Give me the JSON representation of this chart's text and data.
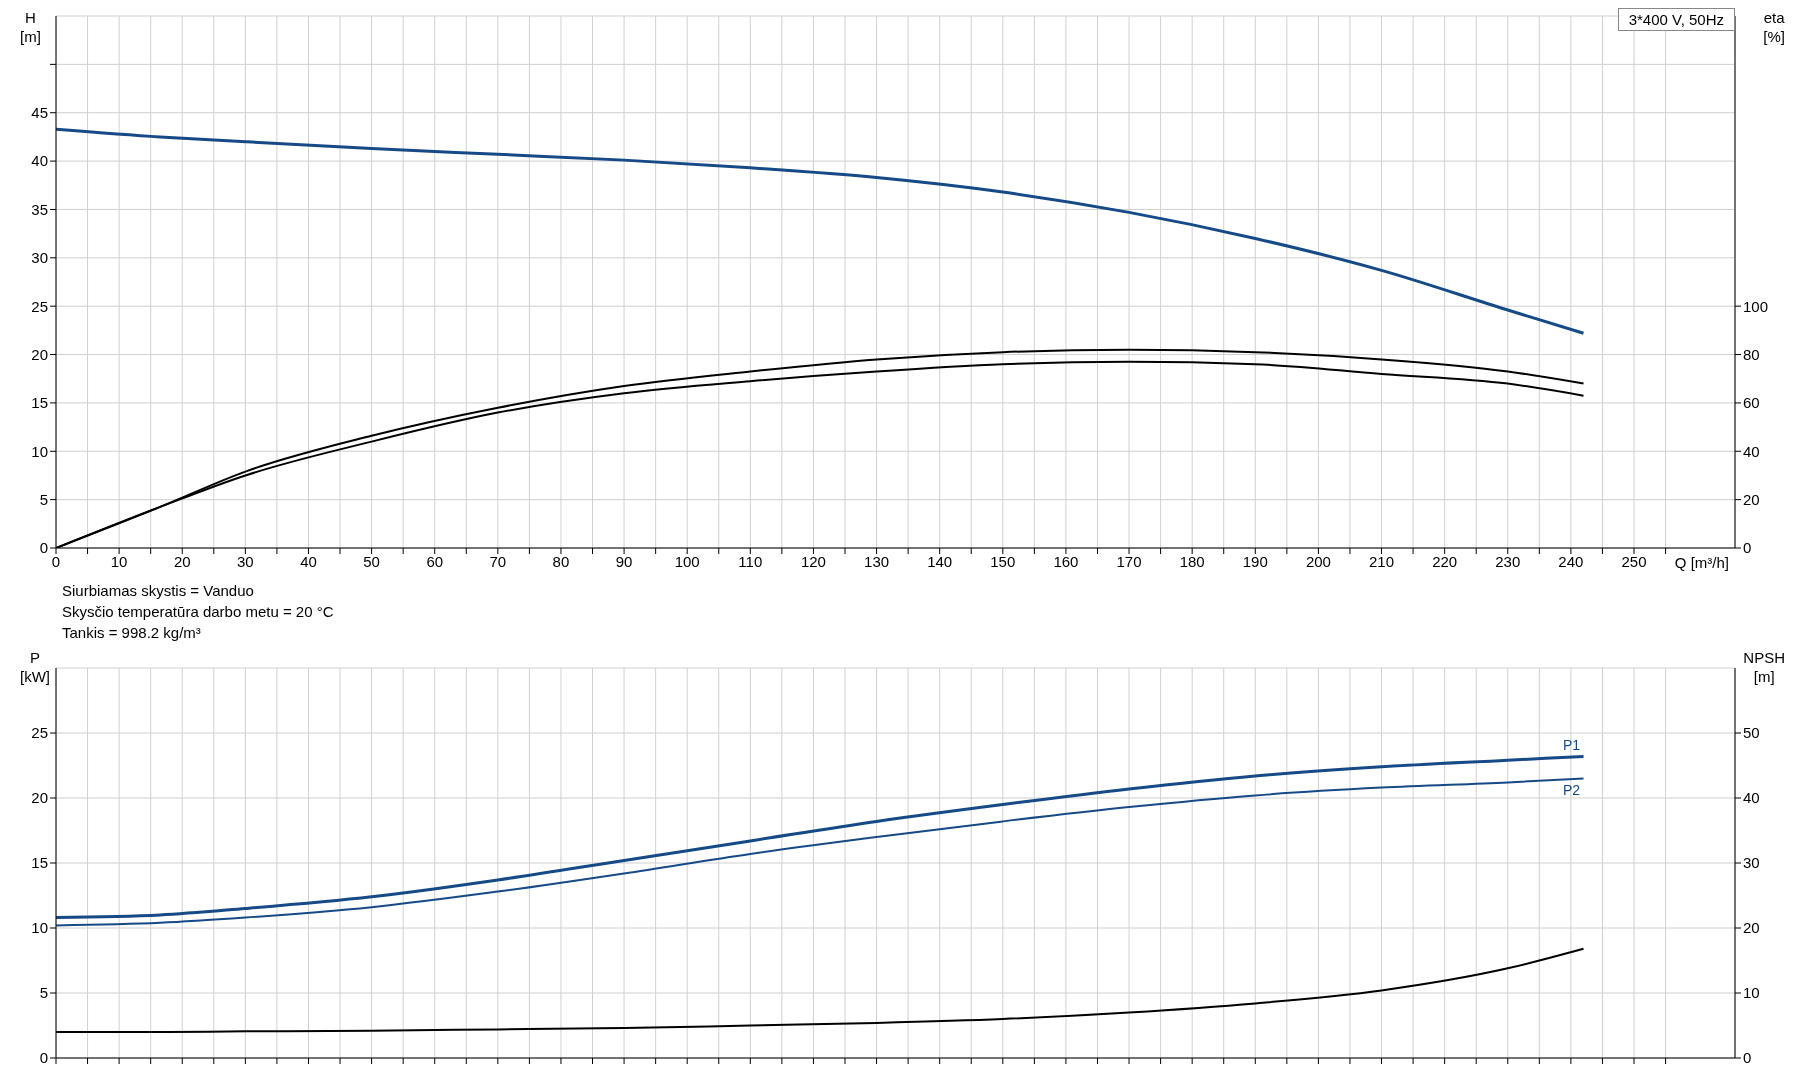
{
  "chart_data": [
    {
      "type": "line",
      "xlabel": "Q [m³/h]",
      "ylabel": "H [m]",
      "y2label": "eta [%]",
      "annotations": [
        "3*400 V, 50Hz",
        "Siurbiamas skystis = Vanduo",
        "Skysčio temperatūra darbo metu = 20 °C",
        "Tankis = 998.2 kg/m³"
      ],
      "x": [
        0,
        16.5,
        30,
        50,
        70,
        90,
        110,
        130,
        150,
        170,
        190,
        210,
        230,
        242
      ],
      "series": [
        {
          "color": "#154a86",
          "values": [
            43.3,
            42.5,
            42.0,
            41.3,
            40.7,
            40.1,
            39.3,
            38.3,
            36.8,
            34.7,
            32.0,
            28.7,
            24.6,
            22.2
          ]
        },
        {
          "color": "#000000",
          "axis": "y2",
          "values": [
            0,
            17,
            31.6,
            46.4,
            58,
            67,
            73,
            78,
            81,
            82,
            81,
            78,
            73,
            68
          ]
        },
        {
          "color": "#000000",
          "axis": "y2",
          "values": [
            0,
            17,
            30,
            44,
            56,
            64,
            69,
            73,
            76,
            77,
            76,
            72,
            68,
            63
          ]
        }
      ],
      "xlim": [
        0,
        266
      ],
      "xticks": [
        0,
        {
          "value": 5,
          "label": null
        },
        10,
        {
          "value": 15,
          "label": null
        },
        20,
        {
          "value": 25,
          "label": null
        },
        30,
        {
          "value": 35,
          "label": null
        },
        40,
        {
          "value": 45,
          "label": null
        },
        50,
        {
          "value": 55,
          "label": null
        },
        60,
        {
          "value": 65,
          "label": null
        },
        70,
        {
          "value": 75,
          "label": null
        },
        80,
        {
          "value": 85,
          "label": null
        },
        90,
        {
          "value": 95,
          "label": null
        },
        100,
        {
          "value": 105,
          "label": null
        },
        110,
        {
          "value": 115,
          "label": null
        },
        120,
        {
          "value": 125,
          "label": null
        },
        130,
        {
          "value": 135,
          "label": null
        },
        140,
        {
          "value": 145,
          "label": null
        },
        150,
        {
          "value": 155,
          "label": null
        },
        160,
        {
          "value": 165,
          "label": null
        },
        170,
        {
          "value": 175,
          "label": null
        },
        180,
        {
          "value": 185,
          "label": null
        },
        190,
        {
          "value": 195,
          "label": null
        },
        200,
        {
          "value": 205,
          "label": null
        },
        210,
        {
          "value": 215,
          "label": null
        },
        220,
        {
          "value": 225,
          "label": null
        },
        230,
        {
          "value": 235,
          "label": null
        },
        240,
        {
          "value": 245,
          "label": null
        },
        250,
        {
          "value": 255,
          "label": null
        }
      ],
      "ylim": [
        0,
        55
      ],
      "yticks": [
        0,
        5,
        10,
        15,
        20,
        25,
        30,
        35,
        40,
        45,
        {
          "value": 50,
          "label": null
        }
      ],
      "y2lim": [
        0,
        220
      ],
      "y2ticks": [
        0,
        20,
        40,
        60,
        80,
        100
      ],
      "grid": true
    },
    {
      "type": "line",
      "ylabel": "P [kW]",
      "y2label": "NPSH [m]",
      "tick_labels": "y",
      "x": [
        0,
        16.5,
        30,
        50,
        70,
        90,
        110,
        130,
        150,
        170,
        190,
        210,
        230,
        242
      ],
      "series": [
        {
          "name": "P1",
          "color": "#154a86",
          "values": [
            10.8,
            11.0,
            11.5,
            12.4,
            13.7,
            15.2,
            16.7,
            18.2,
            19.5,
            20.7,
            21.7,
            22.4,
            22.9,
            23.2
          ]
        },
        {
          "name": "P2",
          "color": "#154a86",
          "values": [
            10.2,
            10.4,
            10.8,
            11.6,
            12.8,
            14.2,
            15.7,
            17.0,
            18.2,
            19.3,
            20.2,
            20.8,
            21.2,
            21.5
          ]
        },
        {
          "color": "#000000",
          "axis": "y2",
          "values": [
            4.0,
            4.0,
            4.1,
            4.2,
            4.4,
            4.6,
            5.0,
            5.4,
            6.0,
            7.0,
            8.4,
            10.4,
            13.8,
            16.8
          ]
        }
      ],
      "xlim": [
        0,
        266
      ],
      "xticks": [
        0,
        {
          "value": 5,
          "label": null
        },
        {
          "value": 10,
          "label": null
        },
        {
          "value": 15,
          "label": null
        },
        {
          "value": 20,
          "label": null
        },
        {
          "value": 25,
          "label": null
        },
        {
          "value": 30,
          "label": null
        },
        {
          "value": 35,
          "label": null
        },
        {
          "value": 40,
          "label": null
        },
        {
          "value": 45,
          "label": null
        },
        {
          "value": 50,
          "label": null
        },
        {
          "value": 55,
          "label": null
        },
        {
          "value": 60,
          "label": null
        },
        {
          "value": 65,
          "label": null
        },
        {
          "value": 70,
          "label": null
        },
        {
          "value": 75,
          "label": null
        },
        {
          "value": 80,
          "label": null
        },
        {
          "value": 85,
          "label": null
        },
        {
          "value": 90,
          "label": null
        },
        {
          "value": 95,
          "label": null
        },
        {
          "value": 100,
          "label": null
        },
        {
          "value": 105,
          "label": null
        },
        {
          "value": 110,
          "label": null
        },
        {
          "value": 115,
          "label": null
        },
        {
          "value": 120,
          "label": null
        },
        {
          "value": 125,
          "label": null
        },
        {
          "value": 130,
          "label": null
        },
        {
          "value": 135,
          "label": null
        },
        {
          "value": 140,
          "label": null
        },
        {
          "value": 145,
          "label": null
        },
        {
          "value": 150,
          "label": null
        },
        {
          "value": 155,
          "label": null
        },
        {
          "value": 160,
          "label": null
        },
        {
          "value": 165,
          "label": null
        },
        {
          "value": 170,
          "label": null
        },
        {
          "value": 175,
          "label": null
        },
        {
          "value": 180,
          "label": null
        },
        {
          "value": 185,
          "label": null
        },
        {
          "value": 190,
          "label": null
        },
        {
          "value": 195,
          "label": null
        },
        {
          "value": 200,
          "label": null
        },
        {
          "value": 205,
          "label": null
        },
        {
          "value": 210,
          "label": null
        },
        {
          "value": 215,
          "label": null
        },
        {
          "value": 220,
          "label": null
        },
        {
          "value": 225,
          "label": null
        },
        {
          "value": 230,
          "label": null
        },
        {
          "value": 235,
          "label": null
        },
        {
          "value": 240,
          "label": null
        },
        {
          "value": 245,
          "label": null
        },
        {
          "value": 250,
          "label": null
        },
        {
          "value": 255,
          "label": null
        }
      ],
      "ylim": [
        0,
        30
      ],
      "yticks": [
        0,
        5,
        10,
        15,
        20,
        25
      ],
      "y2lim": [
        0,
        60
      ],
      "y2ticks": [
        0,
        10,
        20,
        30,
        40,
        50
      ],
      "grid": true
    }
  ]
}
